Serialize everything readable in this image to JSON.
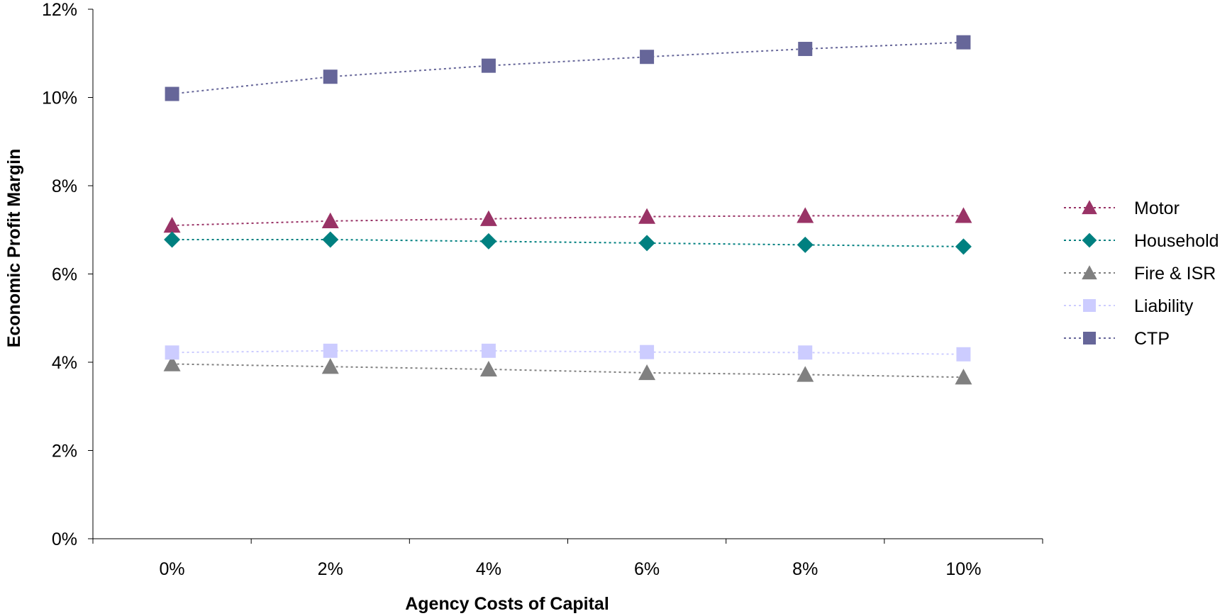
{
  "chart_data": {
    "type": "line",
    "title": "",
    "xlabel": "Agency Costs of Capital",
    "ylabel": "Economic Profit Margin",
    "categories": [
      "0%",
      "2%",
      "4%",
      "6%",
      "8%",
      "10%"
    ],
    "y_ticks": [
      "0%",
      "2%",
      "4%",
      "6%",
      "8%",
      "10%",
      "12%"
    ],
    "ylim": [
      0,
      12
    ],
    "y_unit": "%",
    "grid": false,
    "legend_position": "right",
    "line_style": "dotted",
    "series": [
      {
        "name": "Motor",
        "marker": "triangle",
        "color": "#993366",
        "values": [
          7.1,
          7.2,
          7.25,
          7.3,
          7.32,
          7.32
        ]
      },
      {
        "name": "Household",
        "marker": "diamond",
        "color": "#008080",
        "values": [
          6.78,
          6.78,
          6.74,
          6.7,
          6.66,
          6.62
        ]
      },
      {
        "name": "Fire & ISR",
        "marker": "triangle",
        "color": "#808080",
        "values": [
          3.96,
          3.9,
          3.84,
          3.76,
          3.72,
          3.66
        ]
      },
      {
        "name": "Liability",
        "marker": "square",
        "color": "#CCCCFF",
        "values": [
          4.22,
          4.26,
          4.26,
          4.23,
          4.22,
          4.18
        ]
      },
      {
        "name": "CTP",
        "marker": "square",
        "color": "#666699",
        "values": [
          10.08,
          10.47,
          10.72,
          10.92,
          11.1,
          11.25
        ]
      }
    ]
  }
}
